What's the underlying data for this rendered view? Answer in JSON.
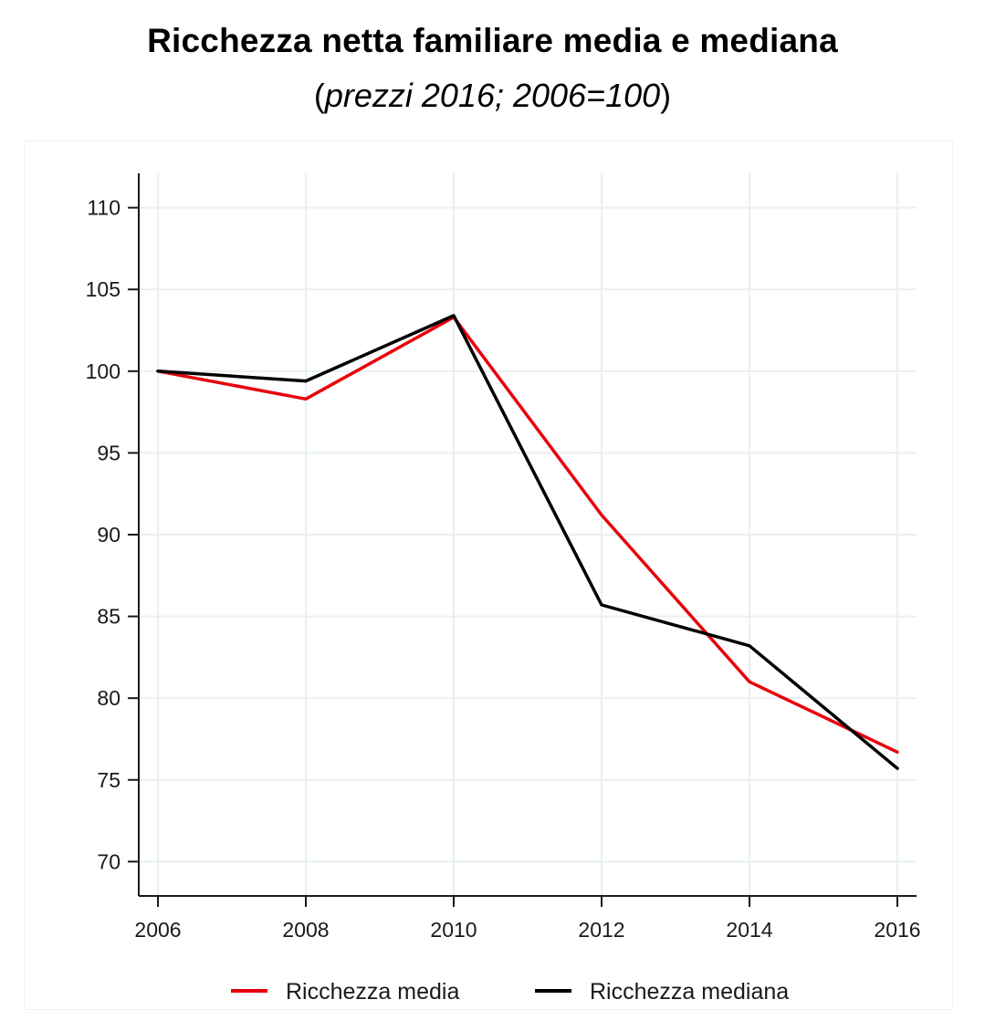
{
  "header": {
    "title": "Ricchezza netta familiare media e mediana",
    "subtitle_open": "(",
    "subtitle_italic": "prezzi 2016; 2006=100",
    "subtitle_close": ")"
  },
  "chart_data": {
    "type": "line",
    "title": "Ricchezza netta familiare media e mediana",
    "subtitle": "(prezzi 2016; 2006=100)",
    "xlabel": "",
    "ylabel": "",
    "x": [
      2006,
      2008,
      2010,
      2012,
      2014,
      2016
    ],
    "x_tick_labels": [
      "2006",
      "2008",
      "2010",
      "2012",
      "2014",
      "2016"
    ],
    "y_ticks": [
      70,
      75,
      80,
      85,
      90,
      95,
      100,
      105,
      110
    ],
    "y_tick_labels": [
      "70",
      "75",
      "80",
      "85",
      "90",
      "95",
      "100",
      "105",
      "110"
    ],
    "xlim": [
      2006,
      2016
    ],
    "ylim": [
      67.9,
      112.1
    ],
    "grid": true,
    "legend_position": "bottom",
    "series": [
      {
        "name": "Ricchezza media",
        "color": "#e8000b",
        "values": [
          100,
          98.3,
          103.3,
          91.2,
          81.0,
          76.7
        ]
      },
      {
        "name": "Ricchezza mediana",
        "color": "#000000",
        "values": [
          100,
          99.4,
          103.4,
          85.7,
          83.2,
          75.7
        ]
      }
    ]
  }
}
